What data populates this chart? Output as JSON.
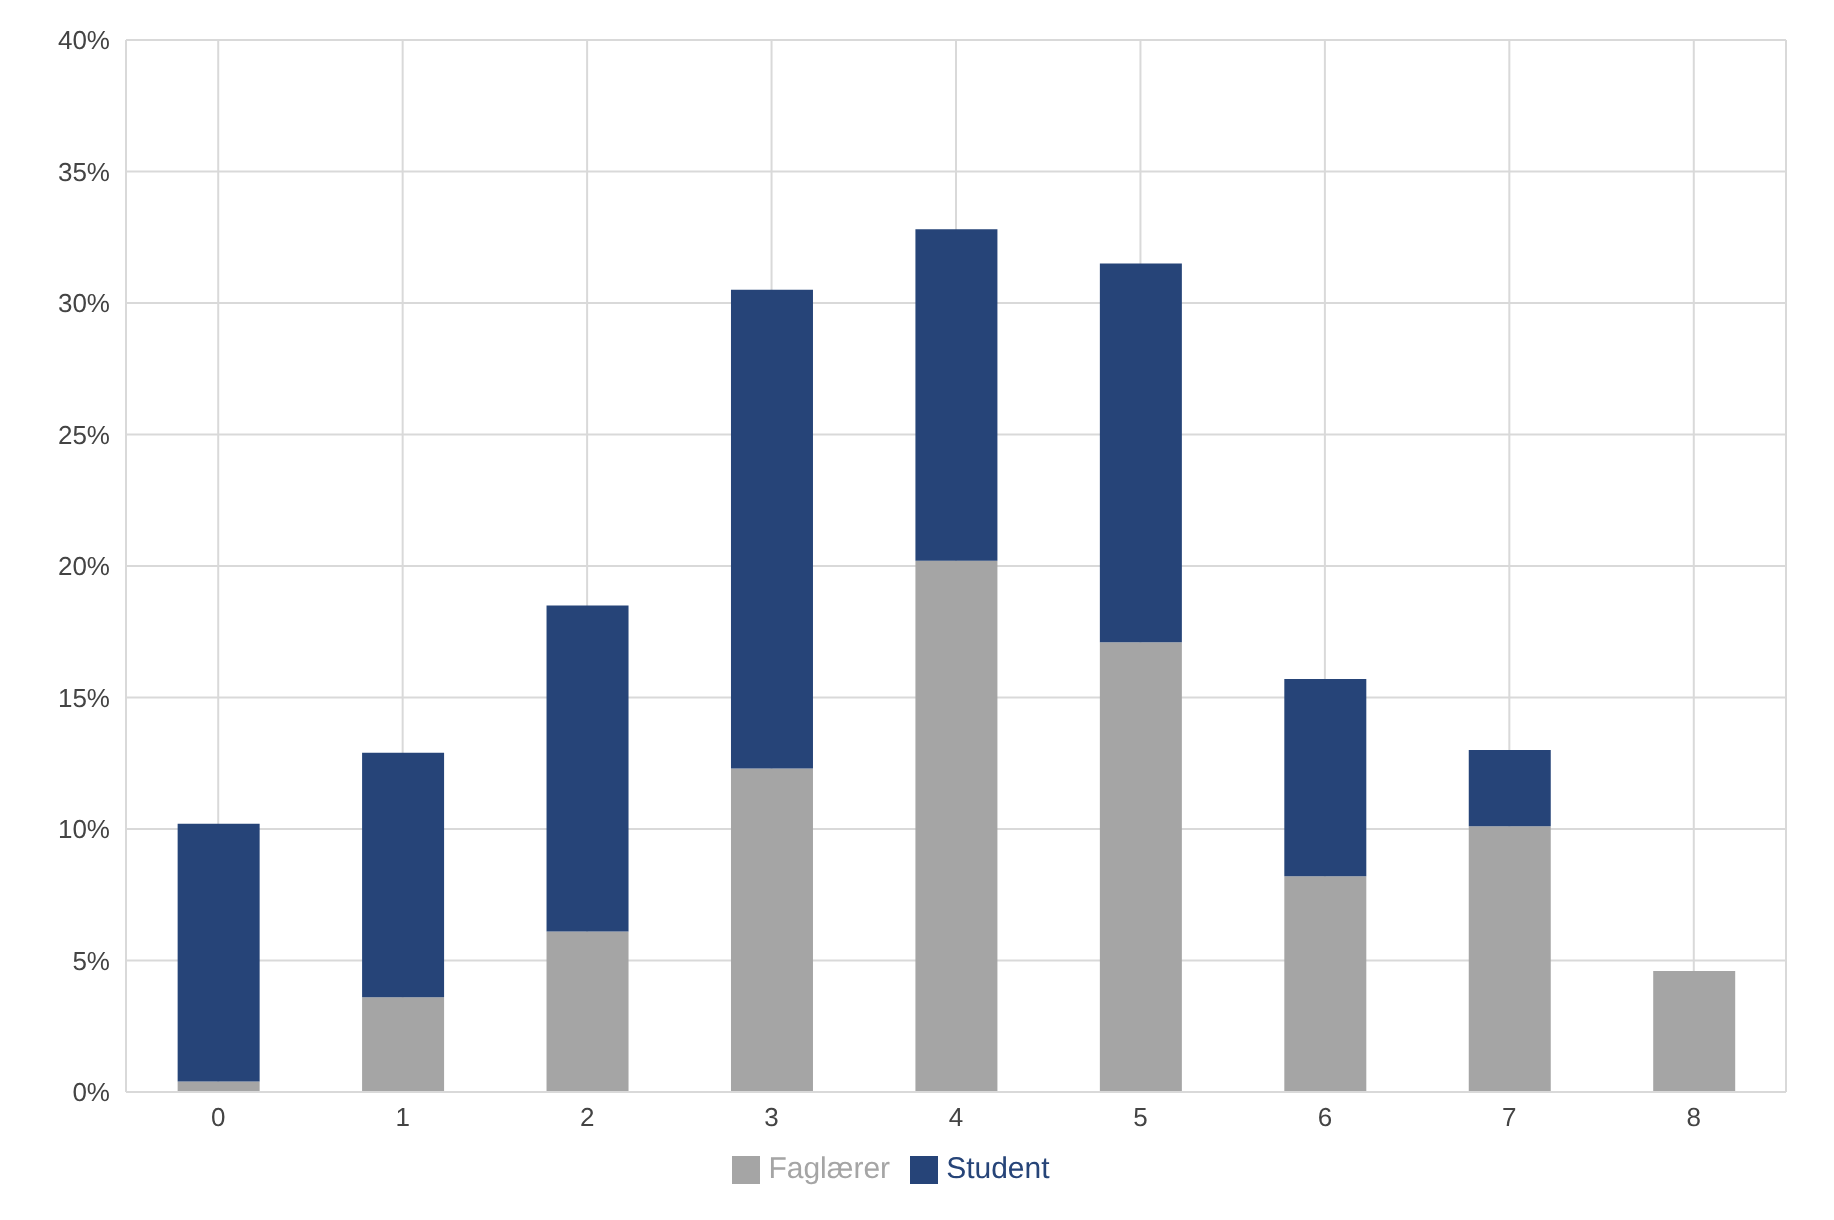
{
  "chart_data": {
    "type": "bar",
    "stacked": true,
    "categories": [
      "0",
      "1",
      "2",
      "3",
      "4",
      "5",
      "6",
      "7",
      "8"
    ],
    "series": [
      {
        "name": "Faglærer",
        "color": "#a5a5a5",
        "values": [
          0.4,
          3.6,
          6.1,
          12.3,
          20.2,
          17.1,
          8.2,
          10.1,
          4.6
        ]
      },
      {
        "name": "Student",
        "color": "#264478",
        "values": [
          9.8,
          9.3,
          12.4,
          18.2,
          12.6,
          14.4,
          7.5,
          2.9,
          0
        ]
      }
    ],
    "ylim": [
      0,
      40
    ],
    "yticks": [
      {
        "value": 0,
        "label": "0%"
      },
      {
        "value": 5,
        "label": "5%"
      },
      {
        "value": 10,
        "label": "10%"
      },
      {
        "value": 15,
        "label": "15%"
      },
      {
        "value": 20,
        "label": "20%"
      },
      {
        "value": 25,
        "label": "25%"
      },
      {
        "value": 30,
        "label": "30%"
      },
      {
        "value": 35,
        "label": "35%"
      },
      {
        "value": 40,
        "label": "40%"
      }
    ],
    "grid": true,
    "legend": "bottom"
  }
}
